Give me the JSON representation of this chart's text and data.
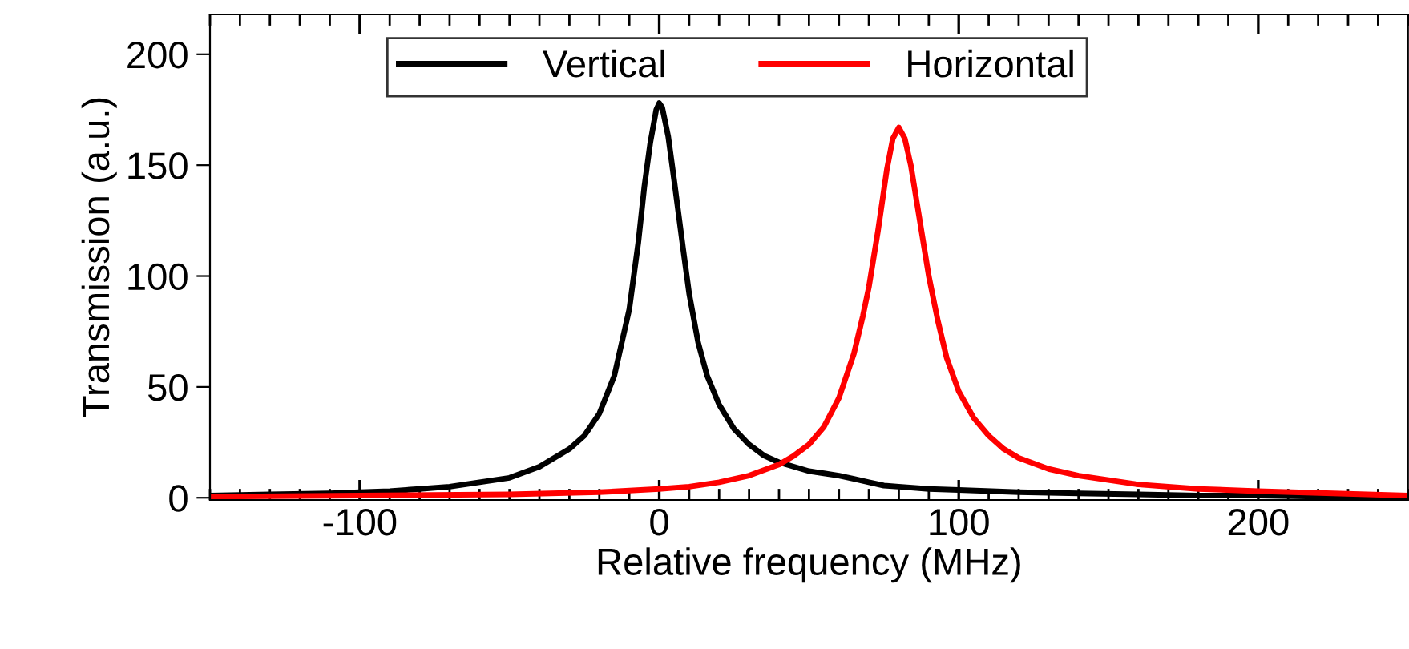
{
  "chart_data": {
    "type": "line",
    "xlabel": "Relative frequency (MHz)",
    "ylabel": "Transmission (a.u.)",
    "xlim": [
      -150,
      250
    ],
    "xticks": [
      -100,
      0,
      100,
      200
    ],
    "ylim": [
      -1,
      218
    ],
    "yticks": [
      0,
      50,
      100,
      150,
      200
    ],
    "grid": false,
    "legend": "top",
    "marker": "none",
    "line_style": "solid",
    "series": [
      {
        "name": "Vertical",
        "color": "#000000",
        "x": [
          -150,
          -130,
          -110,
          -100,
          -90,
          -80,
          -70,
          -60,
          -50,
          -40,
          -30,
          -25,
          -20,
          -15,
          -10,
          -7,
          -5,
          -3,
          -1,
          0,
          1,
          3,
          5,
          8,
          10,
          13,
          16,
          20,
          25,
          30,
          35,
          40,
          45,
          50,
          55,
          60,
          65,
          70,
          75,
          80,
          90,
          100,
          120,
          140,
          160,
          180,
          200,
          220,
          250
        ],
        "values": [
          1,
          1.5,
          2,
          2.5,
          3,
          4,
          5,
          7,
          9,
          14,
          22,
          28,
          38,
          55,
          85,
          115,
          140,
          160,
          175,
          178,
          176,
          163,
          143,
          112,
          92,
          70,
          55,
          42,
          31,
          24,
          19,
          16,
          14,
          12,
          11,
          10,
          8.5,
          7,
          5.5,
          5,
          4,
          3.5,
          2.5,
          2,
          1.5,
          1,
          1,
          0.5,
          0.5
        ]
      },
      {
        "name": "Horizontal",
        "color": "#ff0000",
        "x": [
          -150,
          -100,
          -50,
          -20,
          0,
          10,
          20,
          30,
          40,
          45,
          50,
          55,
          60,
          65,
          68,
          70,
          73,
          76,
          78,
          80,
          82,
          84,
          87,
          90,
          93,
          96,
          100,
          105,
          110,
          115,
          120,
          130,
          140,
          150,
          160,
          180,
          200,
          225,
          250
        ],
        "values": [
          0.5,
          1,
          1.5,
          2.5,
          4,
          5,
          7,
          10,
          15,
          19,
          24,
          32,
          45,
          65,
          82,
          95,
          120,
          148,
          162,
          167,
          162,
          150,
          125,
          100,
          80,
          63,
          48,
          36,
          28,
          22,
          18,
          13,
          10,
          8,
          6,
          4,
          3,
          2,
          1
        ]
      }
    ]
  }
}
